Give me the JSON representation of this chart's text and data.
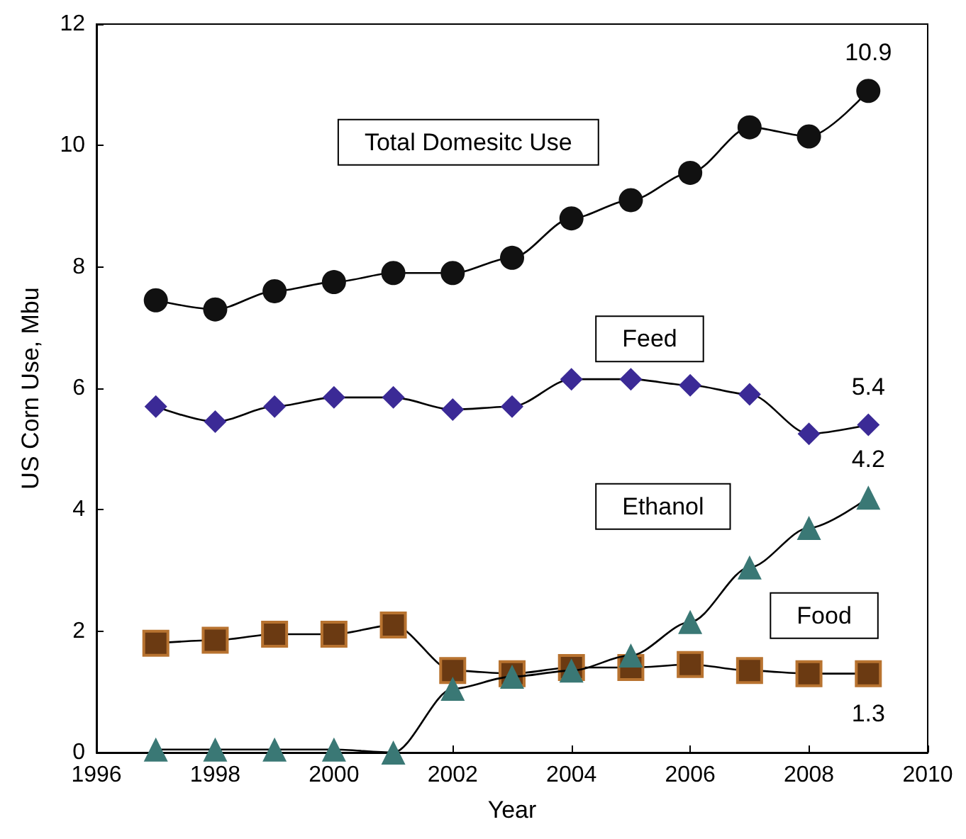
{
  "chart_data": {
    "type": "line",
    "xlabel": "Year",
    "ylabel": "US Corn Use, Mbu",
    "x": [
      1997,
      1998,
      1999,
      2000,
      2001,
      2002,
      2003,
      2004,
      2005,
      2006,
      2007,
      2008,
      2009
    ],
    "xlim": [
      1996,
      2010
    ],
    "xticks": [
      1996,
      1998,
      2000,
      2002,
      2004,
      2006,
      2008,
      2010
    ],
    "ylim": [
      0,
      12
    ],
    "yticks": [
      0,
      2,
      4,
      6,
      8,
      10,
      12
    ],
    "grid": false,
    "legend": false,
    "series": [
      {
        "name": "Total Domesitc Use",
        "color": "#111111",
        "marker": "circle",
        "values": [
          7.45,
          7.3,
          7.6,
          7.75,
          7.9,
          7.9,
          8.15,
          8.8,
          9.1,
          9.55,
          10.3,
          10.15,
          10.9
        ],
        "value_labels": [
          null,
          null,
          null,
          null,
          null,
          null,
          null,
          null,
          null,
          null,
          null,
          null,
          "10.9"
        ]
      },
      {
        "name": "Feed",
        "color": "#3b2a96",
        "marker": "diamond",
        "values": [
          5.7,
          5.45,
          5.7,
          5.85,
          5.85,
          5.65,
          5.7,
          6.15,
          6.15,
          6.05,
          5.9,
          5.25,
          5.4
        ],
        "value_labels": [
          null,
          null,
          null,
          null,
          null,
          null,
          null,
          null,
          null,
          null,
          null,
          null,
          "5.4"
        ]
      },
      {
        "name": "Ethanol",
        "color": "#3a7875",
        "marker": "triangle",
        "values": [
          0.05,
          0.05,
          0.05,
          0.05,
          0.0,
          1.05,
          1.25,
          1.35,
          1.6,
          2.15,
          3.05,
          3.7,
          4.2
        ],
        "value_labels": [
          null,
          null,
          null,
          null,
          null,
          null,
          null,
          null,
          null,
          null,
          null,
          null,
          "4.2"
        ]
      },
      {
        "name": "Food",
        "color": "#6b3a12",
        "marker": "square",
        "values": [
          1.8,
          1.85,
          1.95,
          1.95,
          2.1,
          1.35,
          1.3,
          1.4,
          1.4,
          1.45,
          1.35,
          1.3,
          1.3
        ],
        "value_labels": [
          null,
          null,
          null,
          null,
          null,
          null,
          null,
          null,
          null,
          null,
          null,
          null,
          "1.3"
        ]
      }
    ]
  }
}
